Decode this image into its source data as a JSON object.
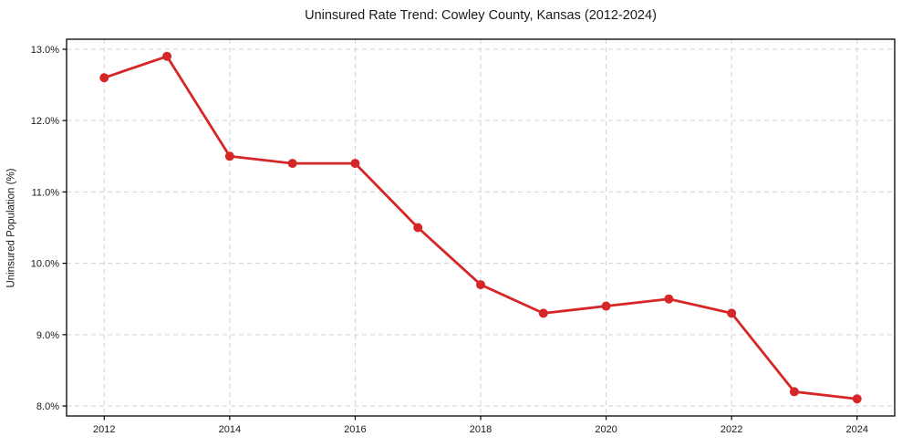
{
  "chart_data": {
    "type": "line",
    "title": "Uninsured Rate Trend: Cowley County, Kansas (2012-2024)",
    "xlabel": "",
    "ylabel": "Uninsured Population (%)",
    "series": [
      {
        "name": "uninsured-rate",
        "x": [
          2012,
          2013,
          2014,
          2015,
          2016,
          2017,
          2018,
          2019,
          2020,
          2021,
          2022,
          2023,
          2024
        ],
        "values": [
          12.6,
          12.9,
          11.5,
          11.4,
          11.4,
          10.5,
          9.7,
          9.3,
          9.4,
          9.5,
          9.3,
          8.2,
          8.1
        ]
      }
    ],
    "xlim": [
      2011.4,
      2024.6
    ],
    "ylim": [
      7.86,
      13.14
    ],
    "xticks": {
      "values": [
        2012,
        2014,
        2016,
        2018,
        2020,
        2022,
        2024
      ],
      "labels": [
        "2012",
        "2014",
        "2016",
        "2018",
        "2020",
        "2022",
        "2024"
      ]
    },
    "yticks": {
      "values": [
        8,
        9,
        10,
        11,
        12,
        13
      ],
      "labels": [
        "8.0%",
        "9.0%",
        "10.0%",
        "11.0%",
        "12.0%",
        "13.0%"
      ]
    },
    "grid": {
      "show": true,
      "style": "dashed",
      "color": "#d3d3d3"
    },
    "legend": "none",
    "colors": {
      "line": "#d62728",
      "marker": "#d62728",
      "frame": "#000000",
      "text": "#1a1a1a",
      "background": "#ffffff"
    },
    "marker_shape": "circle"
  }
}
